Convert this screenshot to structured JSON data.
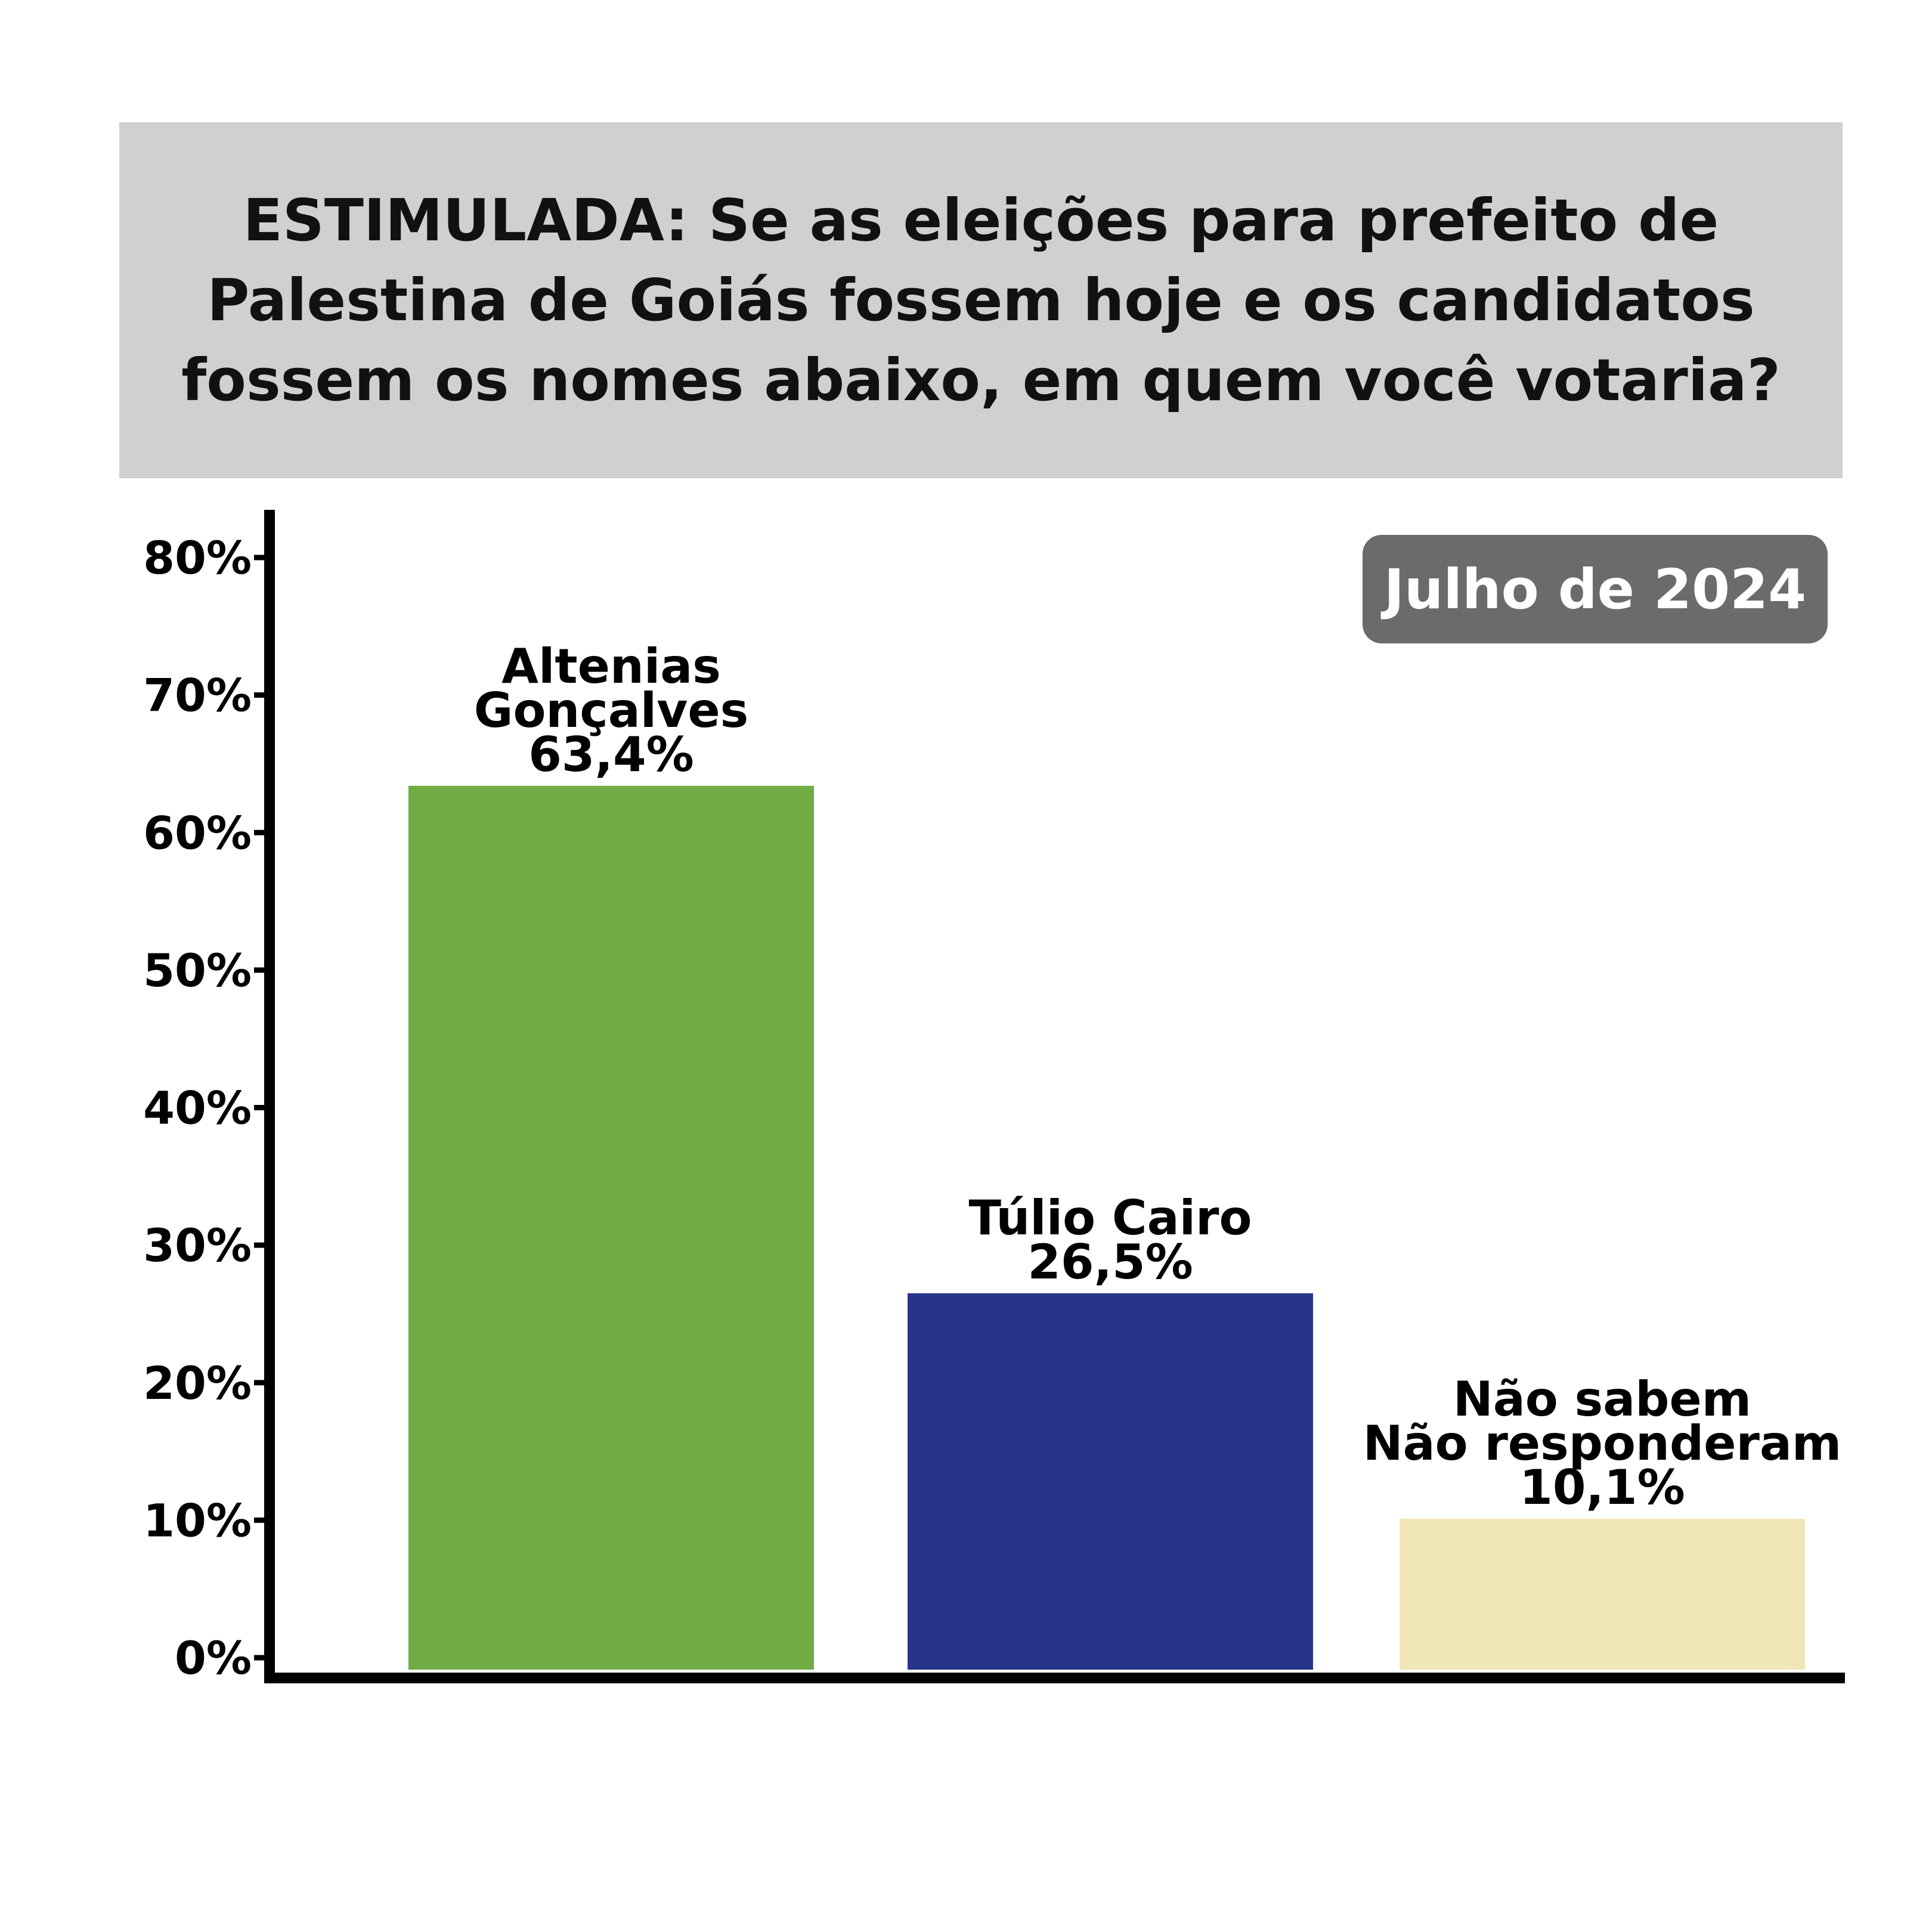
{
  "title": "ESTIMULADA: Se as eleições para prefeito de Palestina de Goiás fossem hoje e os candidatos fossem os nomes abaixo, em quem você votaria?",
  "badge": "Julho de 2024",
  "colors": {
    "title_bg": "#d0d0d0",
    "badge_bg": "#6b6b6b",
    "axis": "#000000"
  },
  "chart_data": {
    "type": "bar",
    "title": "ESTIMULADA: Se as eleições para prefeito de Palestina de Goiás fossem hoje e os candidatos fossem os nomes abaixo, em quem você votaria?",
    "xlabel": "",
    "ylabel": "",
    "ylim": [
      0,
      80
    ],
    "yticks": [
      0,
      10,
      20,
      30,
      40,
      50,
      60,
      70,
      80
    ],
    "ytick_labels": [
      "0%",
      "10%",
      "20%",
      "30%",
      "40%",
      "50%",
      "60%",
      "70%",
      "80%"
    ],
    "grid": false,
    "legend": "none",
    "bars": [
      {
        "label_lines": [
          "Altenias",
          "Gonçalves"
        ],
        "value": 63.4,
        "value_label": "63,4%",
        "color": "#6fac43"
      },
      {
        "label_lines": [
          "Túlio Cairo"
        ],
        "value": 26.5,
        "value_label": "26,5%",
        "color": "#283489"
      },
      {
        "label_lines": [
          "Não sabem",
          "Não responderam"
        ],
        "value": 10.1,
        "value_label": "10,1%",
        "color": "#f1e6b7"
      }
    ]
  }
}
